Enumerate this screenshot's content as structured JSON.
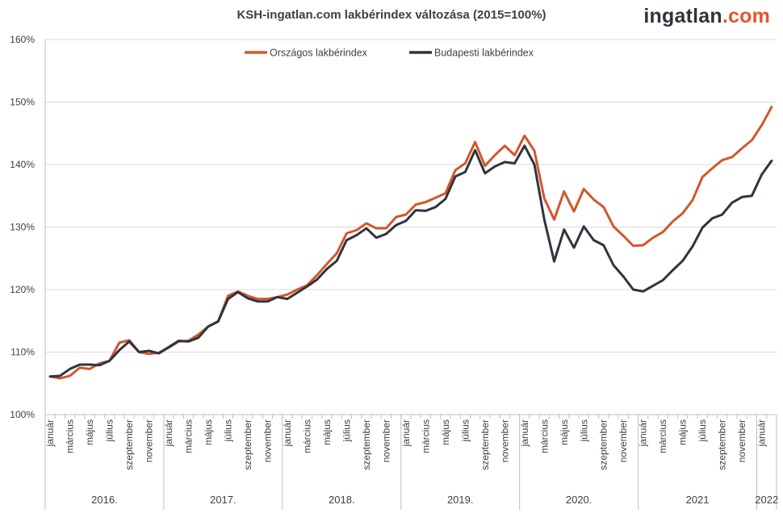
{
  "brand": {
    "part1": "ingatlan",
    "part2": ".com"
  },
  "colors": {
    "orszagos": "#d4562b",
    "budapesti": "#2f3441",
    "grid": "#d9d9d9",
    "axis": "#bfbfbf"
  },
  "chart_data": {
    "type": "line",
    "title": "KSH-ingatlan.com lakbérindex változása (2015=100%)",
    "ylim": [
      100,
      160
    ],
    "yticks": [
      "100%",
      "110%",
      "120%",
      "130%",
      "140%",
      "150%",
      "160%"
    ],
    "grid": true,
    "legend_position": "top",
    "x_tick_labels": [
      "január",
      "március",
      "május",
      "július",
      "szeptember",
      "november",
      "január",
      "március",
      "május",
      "július",
      "szeptember",
      "november",
      "január",
      "március",
      "május",
      "július",
      "szeptember",
      "november",
      "január",
      "március",
      "május",
      "július",
      "szeptember",
      "november",
      "január",
      "március",
      "május",
      "július",
      "szeptember",
      "november",
      "január",
      "március",
      "május",
      "július",
      "szeptember",
      "november",
      "január"
    ],
    "x_tick_months": [
      0,
      2,
      4,
      6,
      8,
      10,
      12,
      14,
      16,
      18,
      20,
      22,
      24,
      26,
      28,
      30,
      32,
      34,
      36,
      38,
      40,
      42,
      44,
      46,
      48,
      50,
      52,
      54,
      56,
      58,
      60,
      62,
      64,
      66,
      68,
      70,
      72
    ],
    "year_labels": [
      {
        "label": "2016.",
        "start": 0,
        "end": 12
      },
      {
        "label": "2017.",
        "start": 12,
        "end": 24
      },
      {
        "label": "2018.",
        "start": 24,
        "end": 36
      },
      {
        "label": "2019.",
        "start": 36,
        "end": 48
      },
      {
        "label": "2020.",
        "start": 48,
        "end": 60
      },
      {
        "label": "2021",
        "start": 60,
        "end": 72
      },
      {
        "label": "2022",
        "start": 72,
        "end": 74
      }
    ],
    "series": [
      {
        "name": "Országos lakbérindex",
        "values": [
          106.1,
          105.8,
          106.2,
          107.5,
          107.3,
          108.2,
          108.6,
          111.5,
          111.9,
          110.0,
          109.7,
          109.9,
          110.7,
          111.7,
          111.8,
          112.8,
          114.1,
          114.9,
          119.0,
          119.7,
          119.0,
          118.5,
          118.5,
          118.8,
          119.2,
          120.0,
          120.7,
          122.3,
          124.1,
          125.8,
          129.0,
          129.5,
          130.6,
          129.8,
          129.8,
          131.6,
          132.0,
          133.6,
          134.0,
          134.7,
          135.4,
          139.1,
          140.2,
          143.6,
          139.8,
          141.5,
          143.0,
          141.5,
          144.6,
          142.2,
          134.6,
          131.2,
          135.7,
          132.5,
          136.1,
          134.4,
          133.2,
          130.1,
          128.6,
          127.0,
          127.1,
          128.3,
          129.2,
          130.9,
          132.2,
          134.3,
          138.0,
          139.4,
          140.7,
          141.2,
          142.6,
          143.9,
          146.3,
          149.2
        ]
      },
      {
        "name": "Budapesti lakbérindex",
        "values": [
          106.1,
          106.2,
          107.3,
          108.0,
          108.0,
          107.9,
          108.6,
          110.3,
          111.7,
          110.0,
          110.2,
          109.8,
          110.8,
          111.8,
          111.7,
          112.3,
          114.1,
          114.9,
          118.5,
          119.6,
          118.6,
          118.1,
          118.1,
          118.8,
          118.5,
          119.5,
          120.5,
          121.6,
          123.3,
          124.6,
          127.9,
          128.7,
          129.8,
          128.3,
          128.9,
          130.3,
          131.0,
          132.7,
          132.6,
          133.2,
          134.5,
          138.1,
          138.8,
          142.3,
          138.6,
          139.7,
          140.4,
          140.2,
          143.0,
          140.0,
          131.2,
          124.5,
          129.6,
          126.7,
          130.1,
          127.9,
          127.1,
          123.9,
          122.1,
          120.0,
          119.7,
          120.6,
          121.5,
          123.1,
          124.6,
          126.9,
          129.9,
          131.4,
          132.0,
          133.9,
          134.8,
          135.0,
          138.4,
          140.6
        ]
      }
    ]
  }
}
